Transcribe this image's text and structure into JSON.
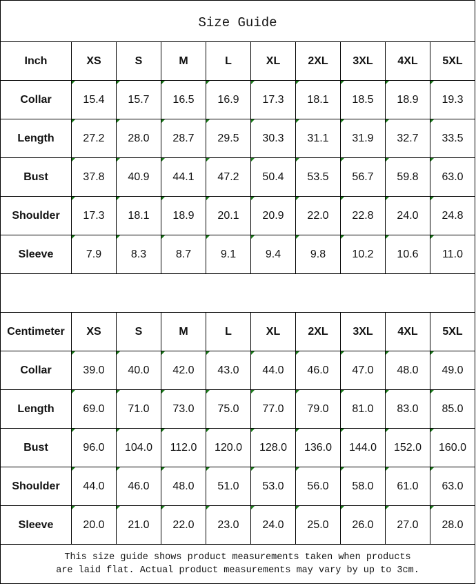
{
  "title": "Size Guide",
  "sizes": [
    "XS",
    "S",
    "M",
    "L",
    "XL",
    "2XL",
    "3XL",
    "4XL",
    "5XL"
  ],
  "inch": {
    "label": "Inch",
    "rows": [
      {
        "name": "Collar",
        "values": [
          "15.4",
          "15.7",
          "16.5",
          "16.9",
          "17.3",
          "18.1",
          "18.5",
          "18.9",
          "19.3"
        ]
      },
      {
        "name": "Length",
        "values": [
          "27.2",
          "28.0",
          "28.7",
          "29.5",
          "30.3",
          "31.1",
          "31.9",
          "32.7",
          "33.5"
        ]
      },
      {
        "name": "Bust",
        "values": [
          "37.8",
          "40.9",
          "44.1",
          "47.2",
          "50.4",
          "53.5",
          "56.7",
          "59.8",
          "63.0"
        ]
      },
      {
        "name": "Shoulder",
        "values": [
          "17.3",
          "18.1",
          "18.9",
          "20.1",
          "20.9",
          "22.0",
          "22.8",
          "24.0",
          "24.8"
        ]
      },
      {
        "name": "Sleeve",
        "values": [
          "7.9",
          "8.3",
          "8.7",
          "9.1",
          "9.4",
          "9.8",
          "10.2",
          "10.6",
          "11.0"
        ]
      }
    ]
  },
  "cm": {
    "label": "Centimeter",
    "rows": [
      {
        "name": "Collar",
        "values": [
          "39.0",
          "40.0",
          "42.0",
          "43.0",
          "44.0",
          "46.0",
          "47.0",
          "48.0",
          "49.0"
        ]
      },
      {
        "name": "Length",
        "values": [
          "69.0",
          "71.0",
          "73.0",
          "75.0",
          "77.0",
          "79.0",
          "81.0",
          "83.0",
          "85.0"
        ]
      },
      {
        "name": "Bust",
        "values": [
          "96.0",
          "104.0",
          "112.0",
          "120.0",
          "128.0",
          "136.0",
          "144.0",
          "152.0",
          "160.0"
        ]
      },
      {
        "name": "Shoulder",
        "values": [
          "44.0",
          "46.0",
          "48.0",
          "51.0",
          "53.0",
          "56.0",
          "58.0",
          "61.0",
          "63.0"
        ]
      },
      {
        "name": "Sleeve",
        "values": [
          "20.0",
          "21.0",
          "22.0",
          "23.0",
          "24.0",
          "25.0",
          "26.0",
          "27.0",
          "28.0"
        ]
      }
    ]
  },
  "note": {
    "line1": "This size guide shows product measurements taken when products",
    "line2": "are laid flat. Actual product measurements may vary by up to 3cm."
  }
}
